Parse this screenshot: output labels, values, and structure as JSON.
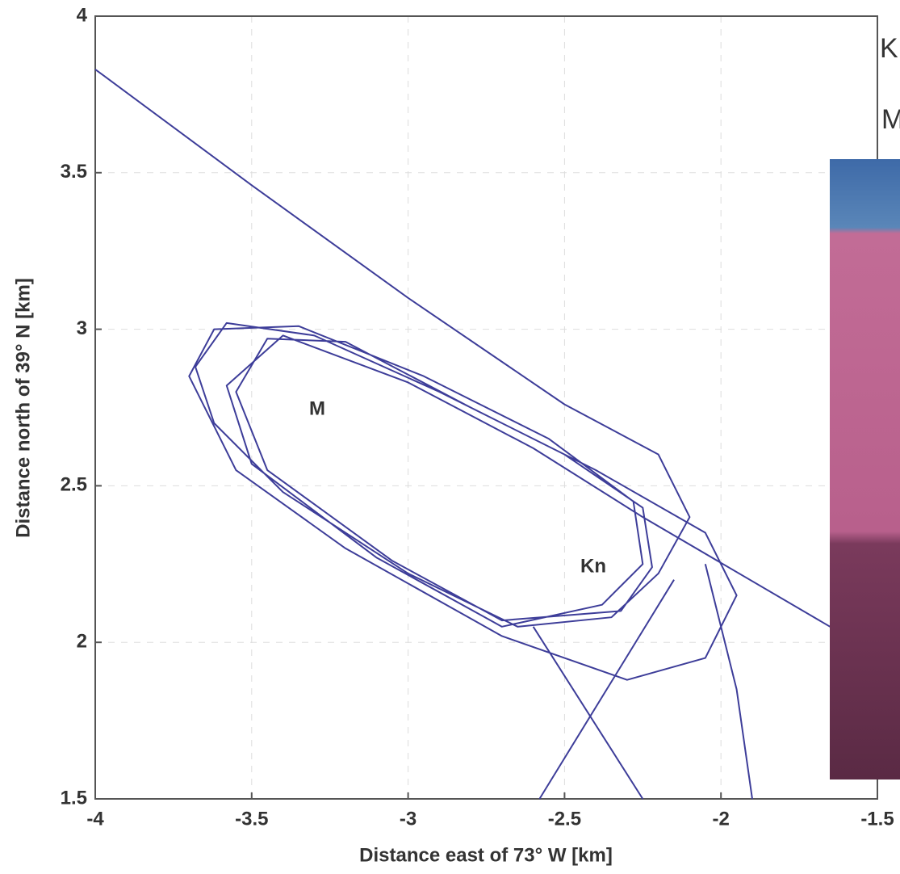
{
  "chart_data": {
    "type": "line",
    "x_label": "Distance east of 73° W [km]",
    "y_label": "Distance north of 39° N [km]",
    "annotations": [
      "M",
      "Kn"
    ],
    "legend_labels": [
      "K",
      "M"
    ],
    "xlim": [
      -4,
      -1.5
    ],
    "ylim": [
      1.5,
      4
    ],
    "xticks": [
      -4,
      -3.5,
      -3,
      -2.5,
      -2,
      -1.5
    ],
    "yticks": [
      1.5,
      2,
      2.5,
      3,
      3.5,
      4
    ],
    "grid": true,
    "series": [
      {
        "color": "#3d3d99",
        "x": [
          -4,
          -3.5,
          -3.0,
          -2.5,
          -2.2,
          -2.1,
          -2.2,
          -2.35,
          -2.65,
          -3.0,
          -3.4,
          -3.62,
          -3.68,
          -3.58,
          -3.3,
          -2.9,
          -2.5,
          -2.25,
          -2.22,
          -2.32,
          -2.7,
          -3.05,
          -3.45,
          -3.55,
          -3.45,
          -3.2,
          -2.8,
          -2.4,
          -2.05,
          -1.95,
          -2.05,
          -2.3,
          -2.7,
          -3.2,
          -3.55,
          -3.7,
          -3.62,
          -3.35,
          -2.95,
          -2.55,
          -2.28,
          -2.25,
          -2.38,
          -2.7,
          -3.1,
          -3.5,
          -3.58,
          -3.4,
          -3.0,
          -2.6,
          -2.25,
          -1.6,
          null,
          -2.58,
          -2.15,
          null,
          -2.6,
          -2.25,
          null,
          -2.05,
          -1.95,
          -1.9
        ],
        "values": [
          3.83,
          3.46,
          3.1,
          2.76,
          2.6,
          2.4,
          2.22,
          2.08,
          2.05,
          2.22,
          2.48,
          2.7,
          2.88,
          3.02,
          2.98,
          2.8,
          2.6,
          2.43,
          2.24,
          2.1,
          2.07,
          2.26,
          2.55,
          2.8,
          2.97,
          2.96,
          2.75,
          2.55,
          2.35,
          2.15,
          1.95,
          1.88,
          2.02,
          2.3,
          2.55,
          2.85,
          3.0,
          3.01,
          2.85,
          2.65,
          2.45,
          2.25,
          2.12,
          2.05,
          2.27,
          2.57,
          2.82,
          2.98,
          2.83,
          2.62,
          2.4,
          2.02,
          null,
          1.5,
          2.2,
          null,
          2.05,
          1.5,
          null,
          2.25,
          1.85,
          1.5
        ]
      }
    ]
  }
}
